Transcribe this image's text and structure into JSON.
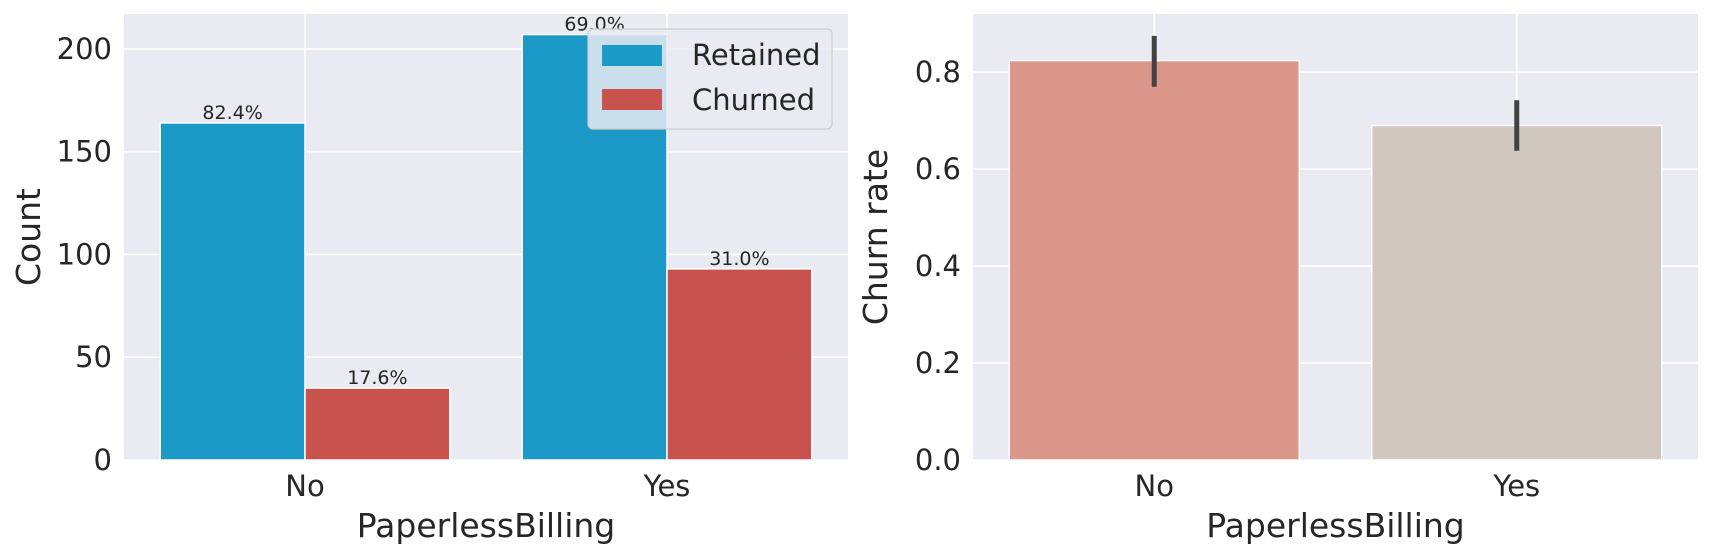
{
  "chart_data": [
    {
      "type": "bar",
      "title": "",
      "xlabel": "PaperlessBilling",
      "ylabel": "Count",
      "categories": [
        "No",
        "Yes"
      ],
      "series": [
        {
          "name": "Retained",
          "values": [
            164,
            207
          ],
          "color": "#1b99c7",
          "labels": [
            "82.4%",
            "69.0%"
          ]
        },
        {
          "name": "Churned",
          "values": [
            35,
            93
          ],
          "color": "#c8524d",
          "labels": [
            "17.6%",
            "31.0%"
          ]
        }
      ],
      "ylim": [
        0,
        217
      ],
      "yticks": [
        0,
        50,
        100,
        150,
        200
      ],
      "grid": true,
      "legend": "top-right",
      "background": "#eaeaf2"
    },
    {
      "type": "bar",
      "title": "",
      "xlabel": "PaperlessBilling",
      "ylabel": "Churn rate",
      "categories": [
        "No",
        "Yes"
      ],
      "values": [
        0.824,
        0.69
      ],
      "error_bars": [
        [
          0.77,
          0.875
        ],
        [
          0.638,
          0.742
        ]
      ],
      "colors": [
        "#db988a",
        "#d0c7be"
      ],
      "ylim": [
        0,
        0.92
      ],
      "yticks": [
        0.0,
        0.2,
        0.4,
        0.6,
        0.8
      ],
      "ytick_labels": [
        "0.0",
        "0.2",
        "0.4",
        "0.6",
        "0.8"
      ],
      "grid": true,
      "background": "#eaeaf2"
    }
  ]
}
